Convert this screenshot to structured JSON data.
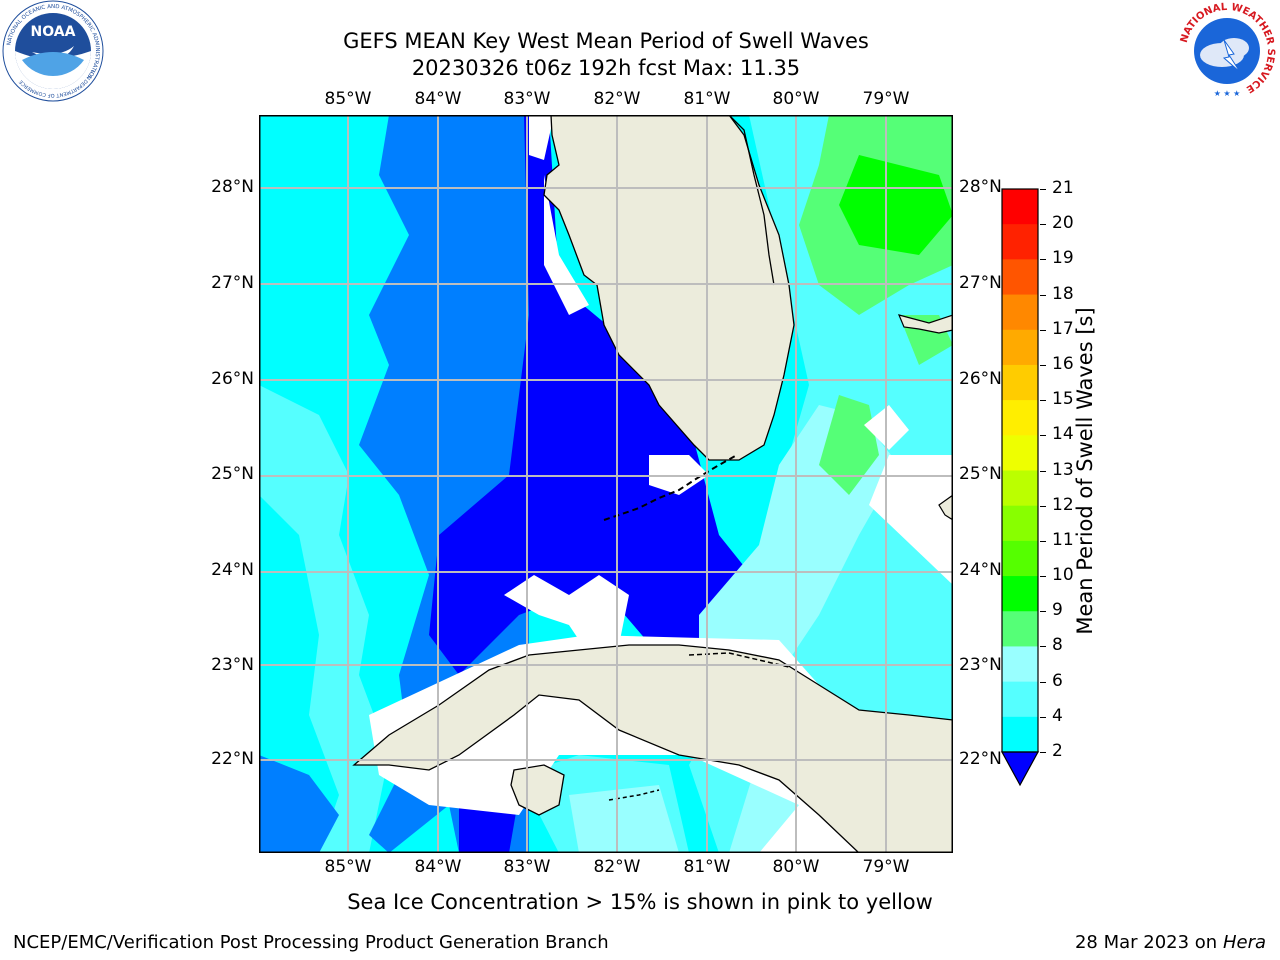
{
  "title_line1": "GEFS MEAN Key West Mean Period of Swell Waves",
  "title_line2": "20230326 t06z 192h fcst   Max: 11.35",
  "longitudes": [
    "85°W",
    "84°W",
    "83°W",
    "82°W",
    "81°W",
    "80°W",
    "79°W"
  ],
  "latitudes": [
    "28°N",
    "27°N",
    "26°N",
    "25°N",
    "24°N",
    "23°N",
    "22°N"
  ],
  "colorbar": {
    "label": "Mean Period of Swell Waves [s]",
    "ticks": [
      "2",
      "4",
      "6",
      "8",
      "9",
      "10",
      "11",
      "12",
      "13",
      "14",
      "15",
      "16",
      "17",
      "18",
      "19",
      "20",
      "21"
    ],
    "colors": [
      "#0000ff",
      "#007fff",
      "#00ffff",
      "#55ffff",
      "#99ffff",
      "#55ff77",
      "#00ff00",
      "#55ff00",
      "#88ff00",
      "#bbff00",
      "#eeff00",
      "#ffee00",
      "#ffcc00",
      "#ffaa00",
      "#ff8800",
      "#ff5500",
      "#ff2200",
      "#ff0000"
    ]
  },
  "colors": {
    "land": "#ececdc",
    "grid": "#bdbdbd",
    "noaa_blue": "#1f4e9c",
    "nws_red": "#d71920"
  },
  "subcaption": "Sea Ice Concentration > 15% is shown in pink to yellow",
  "footer_left": "NCEP/EMC/Verification Post Processing Product Generation Branch",
  "footer_right_date": "28 Mar 2023 on",
  "footer_right_host": "Hera",
  "logos": {
    "noaa_text": "NOAA",
    "noaa_ring": "NATIONAL OCEANIC AND ATMOSPHERIC ADMINISTRATION",
    "noaa_ring_bottom": "U.S. DEPARTMENT OF COMMERCE",
    "nws_ring": "NATIONAL WEATHER SERVICE"
  }
}
